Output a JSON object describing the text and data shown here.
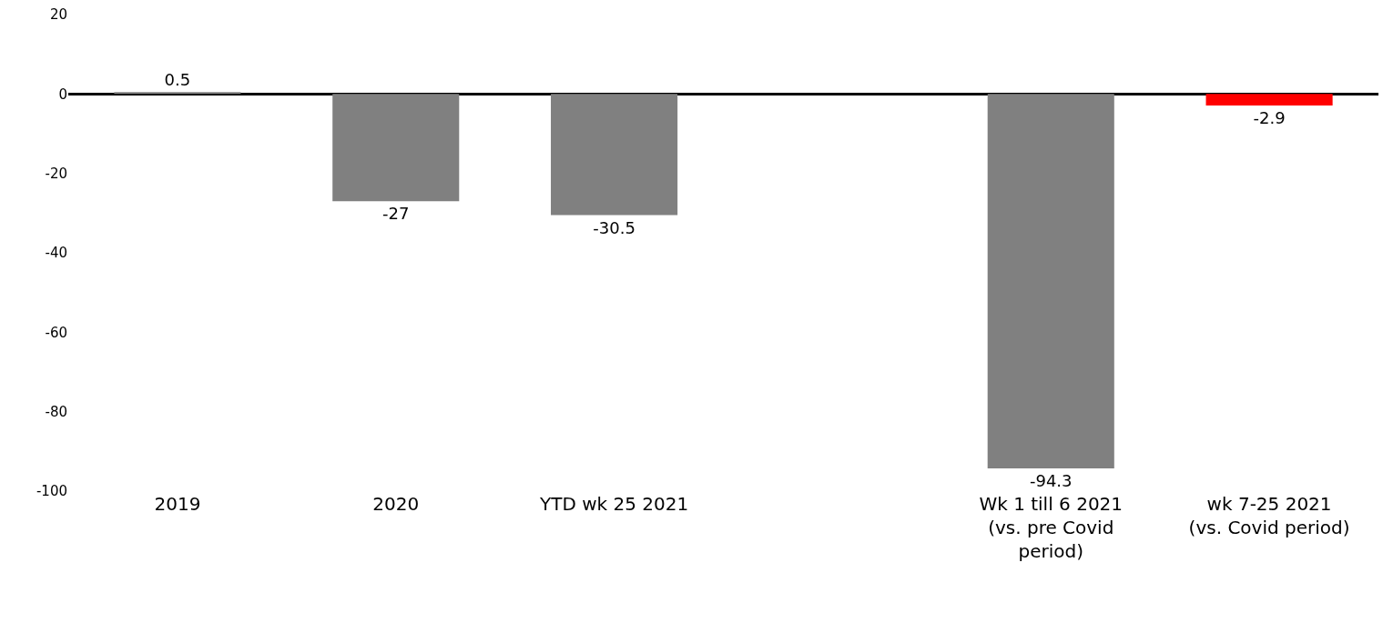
{
  "chart_data": {
    "type": "bar",
    "categories": [
      "2019",
      "2020",
      "YTD wk 25 2021",
      null,
      "Wk 1 till 6 2021\n(vs. pre Covid\nperiod)",
      "wk 7-25 2021\n(vs. Covid period)"
    ],
    "values": [
      0.5,
      -27,
      -30.5,
      null,
      -94.3,
      -2.9
    ],
    "colors": [
      "#808080",
      "#808080",
      "#808080",
      "#808080",
      "#808080",
      "#ff0000"
    ],
    "ylim": [
      -100,
      20
    ],
    "yticks": [
      -100,
      -80,
      -60,
      -40,
      -20,
      0,
      20
    ],
    "data_labels": true
  }
}
